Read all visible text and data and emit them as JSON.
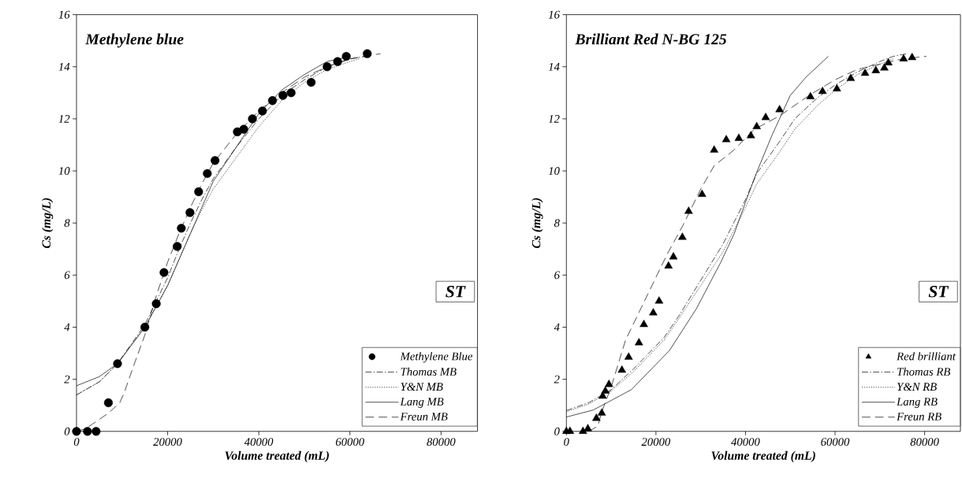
{
  "chart_data": [
    {
      "type": "scatter",
      "title": "Methylene blue",
      "xlabel": "Volume treated (mL)",
      "ylabel": "Cs (mg/L)",
      "annotations": [
        "ST"
      ],
      "legend": "bottom right",
      "xlim": [
        0,
        88000
      ],
      "ylim": [
        0,
        16
      ],
      "xticks": [
        0,
        20000,
        40000,
        60000,
        80000
      ],
      "yticks": [
        0,
        2,
        4,
        6,
        8,
        10,
        12,
        14,
        16
      ],
      "series": [
        {
          "name": "Methylene Blue",
          "marker": "circle",
          "color": "#000000",
          "x": [
            0,
            2400,
            4300,
            7000,
            9000,
            15000,
            17500,
            19200,
            22100,
            23000,
            24900,
            26800,
            28700,
            30400,
            35300,
            36700,
            38600,
            40800,
            43000,
            45300,
            47100,
            51500,
            55000,
            57300,
            59200,
            63800
          ],
          "values": [
            0,
            0,
            0,
            1.1,
            2.6,
            4.0,
            4.9,
            6.1,
            7.1,
            7.8,
            8.4,
            9.2,
            9.9,
            10.4,
            11.5,
            11.6,
            12.0,
            12.3,
            12.7,
            12.9,
            13.0,
            13.4,
            14.0,
            14.2,
            14.4,
            14.5
          ]
        },
        {
          "name": "Thomas MB",
          "type": "line",
          "line_style": "dashdot",
          "color": "#000000",
          "x": [
            0,
            5000,
            9000,
            15000,
            17500,
            20000,
            22500,
            25000,
            27500,
            30000,
            35000,
            40000,
            45000,
            50000,
            55000,
            60000,
            65000
          ],
          "values": [
            1.4,
            1.9,
            2.6,
            4.1,
            5.0,
            5.9,
            7.0,
            8.0,
            8.9,
            9.7,
            10.9,
            12.0,
            12.9,
            13.5,
            14.0,
            14.3,
            14.45
          ]
        },
        {
          "name": "Y&N MB",
          "type": "line",
          "line_style": "dotted",
          "color": "#000000",
          "x": [
            0,
            5000,
            9000,
            15000,
            17500,
            20000,
            22500,
            25000,
            27500,
            30000,
            35000,
            40000,
            45000,
            50000,
            55000,
            60000,
            62000
          ],
          "values": [
            1.4,
            1.9,
            2.6,
            4.0,
            4.8,
            5.6,
            6.6,
            7.6,
            8.5,
            9.3,
            10.5,
            11.7,
            12.7,
            13.4,
            13.9,
            14.2,
            14.3
          ]
        },
        {
          "name": "Lang MB",
          "type": "line",
          "line_style": "solid",
          "color": "#000000",
          "x": [
            0,
            5000,
            9000,
            15000,
            20000,
            25000,
            30000,
            35000,
            40000,
            45000,
            50000,
            55000,
            60000
          ],
          "values": [
            1.75,
            2.1,
            2.6,
            4.0,
            5.6,
            7.6,
            9.6,
            10.9,
            12.2,
            13.1,
            13.7,
            14.2,
            14.4
          ]
        },
        {
          "name": "Freun MB",
          "type": "line",
          "line_style": "dashed",
          "color": "#000000",
          "x": [
            0,
            2000,
            7000,
            9500,
            10500,
            12500,
            15000,
            17500,
            20000,
            22500,
            25000,
            27500,
            30000,
            35000,
            40000,
            45000,
            50000,
            55000,
            60000,
            66700
          ],
          "values": [
            0,
            0.1,
            0.7,
            1.1,
            1.5,
            2.5,
            3.7,
            5.2,
            6.5,
            7.6,
            8.6,
            9.5,
            10.3,
            11.4,
            12.3,
            13.0,
            13.6,
            14.0,
            14.3,
            14.5
          ]
        }
      ]
    },
    {
      "type": "scatter",
      "title": "Brilliant Red N-BG 125",
      "xlabel": "Volume treated (mL)",
      "ylabel": "Cs (mg/L)",
      "annotations": [
        "ST"
      ],
      "legend": "bottom right",
      "xlim": [
        0,
        88000
      ],
      "ylim": [
        0,
        16
      ],
      "xticks": [
        0,
        20000,
        40000,
        60000,
        80000
      ],
      "yticks": [
        0,
        2,
        4,
        6,
        8,
        10,
        12,
        14,
        16
      ],
      "series": [
        {
          "name": "Red brilliant",
          "marker": "triangle",
          "color": "#000000",
          "x": [
            0,
            800,
            3700,
            4800,
            6700,
            7900,
            8100,
            8700,
            9500,
            12400,
            13900,
            16200,
            17300,
            19400,
            20700,
            22800,
            23900,
            25900,
            27300,
            30300,
            33000,
            35700,
            38500,
            41200,
            42500,
            44500,
            47600,
            54500,
            57200,
            60400,
            63500,
            66700,
            69100,
            71000,
            71900,
            75300,
            77200
          ],
          "values": [
            0,
            0,
            0,
            0.1,
            0.5,
            0.7,
            1.35,
            1.55,
            1.8,
            2.35,
            2.85,
            3.4,
            4.1,
            4.55,
            5.0,
            6.35,
            6.7,
            7.45,
            8.45,
            9.1,
            10.8,
            11.2,
            11.25,
            11.35,
            11.7,
            12.05,
            12.35,
            12.85,
            13.05,
            13.15,
            13.55,
            13.75,
            13.85,
            13.95,
            14.15,
            14.3,
            14.35
          ]
        },
        {
          "name": "Thomas RB",
          "type": "line",
          "line_style": "dashdot",
          "color": "#000000",
          "x": [
            0,
            5000,
            10000,
            15000,
            21800,
            25000,
            30000,
            35000,
            40000,
            42500,
            47500,
            51000,
            56000,
            60000,
            65000,
            70000,
            73000,
            76000
          ],
          "values": [
            0.8,
            1.1,
            1.6,
            2.4,
            3.6,
            4.4,
            5.8,
            7.2,
            8.9,
            9.9,
            11.1,
            12.0,
            12.8,
            13.3,
            13.8,
            14.2,
            14.4,
            14.5
          ]
        },
        {
          "name": "Y&N RB",
          "type": "line",
          "line_style": "dotted",
          "color": "#000000",
          "x": [
            0,
            5000,
            10000,
            15000,
            21800,
            25000,
            30000,
            35000,
            40000,
            42500,
            47500,
            51000,
            56000,
            60000,
            65000,
            70000,
            73000
          ],
          "values": [
            0.75,
            1.05,
            1.55,
            2.3,
            3.5,
            4.3,
            5.6,
            6.9,
            8.6,
            9.5,
            10.7,
            11.6,
            12.5,
            13.1,
            13.7,
            14.1,
            14.3
          ]
        },
        {
          "name": "Lang RB",
          "type": "line",
          "line_style": "solid",
          "color": "#000000",
          "x": [
            0,
            6000,
            14500,
            23000,
            29000,
            34500,
            37500,
            40000,
            42500,
            46000,
            50000,
            53500,
            58500
          ],
          "values": [
            0.55,
            0.82,
            1.6,
            3.1,
            4.7,
            6.5,
            7.6,
            8.8,
            9.95,
            11.4,
            12.9,
            13.6,
            14.4
          ]
        },
        {
          "name": "Freun RB",
          "type": "line",
          "line_style": "dashed",
          "color": "#000000",
          "x": [
            5000,
            7000,
            8000,
            10000,
            13200,
            16300,
            22500,
            26000,
            30000,
            33000,
            37400,
            42000,
            47500,
            54200,
            60000,
            65000,
            70000,
            75000,
            80400
          ],
          "values": [
            0,
            0.2,
            0.8,
            1.7,
            3.5,
            4.6,
            6.8,
            7.9,
            9.3,
            10.2,
            10.8,
            11.6,
            12.1,
            12.9,
            13.5,
            13.9,
            14.1,
            14.3,
            14.4
          ]
        }
      ]
    }
  ]
}
